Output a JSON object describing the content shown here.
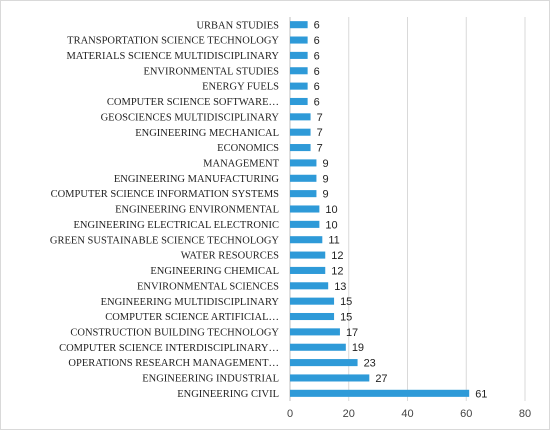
{
  "chart_data": {
    "type": "bar",
    "orientation": "horizontal",
    "categories": [
      "URBAN STUDIES",
      "TRANSPORTATION SCIENCE TECHNOLOGY",
      "MATERIALS SCIENCE MULTIDISCIPLINARY",
      "ENVIRONMENTAL STUDIES",
      "ENERGY FUELS",
      "COMPUTER SCIENCE SOFTWARE…",
      "GEOSCIENCES MULTIDISCIPLINARY",
      "ENGINEERING MECHANICAL",
      "ECONOMICS",
      "MANAGEMENT",
      "ENGINEERING MANUFACTURING",
      "COMPUTER SCIENCE INFORMATION SYSTEMS",
      "ENGINEERING ENVIRONMENTAL",
      "ENGINEERING ELECTRICAL ELECTRONIC",
      "GREEN SUSTAINABLE SCIENCE TECHNOLOGY",
      "WATER RESOURCES",
      "ENGINEERING CHEMICAL",
      "ENVIRONMENTAL SCIENCES",
      "ENGINEERING MULTIDISCIPLINARY",
      "COMPUTER SCIENCE ARTIFICIAL…",
      "CONSTRUCTION BUILDING TECHNOLOGY",
      "COMPUTER SCIENCE INTERDISCIPLINARY…",
      "OPERATIONS RESEARCH MANAGEMENT…",
      "ENGINEERING INDUSTRIAL",
      "ENGINEERING CIVIL"
    ],
    "values": [
      6,
      6,
      6,
      6,
      6,
      6,
      7,
      7,
      7,
      9,
      9,
      9,
      10,
      10,
      11,
      12,
      12,
      13,
      15,
      15,
      17,
      19,
      23,
      27,
      61
    ],
    "xlim": [
      0,
      80
    ],
    "xticks": [
      0,
      20,
      40,
      60,
      80
    ],
    "grid": true,
    "bar_color": "#2e9ad8",
    "grid_color": "#d9d9d9",
    "title": "",
    "xlabel": "",
    "ylabel": ""
  }
}
